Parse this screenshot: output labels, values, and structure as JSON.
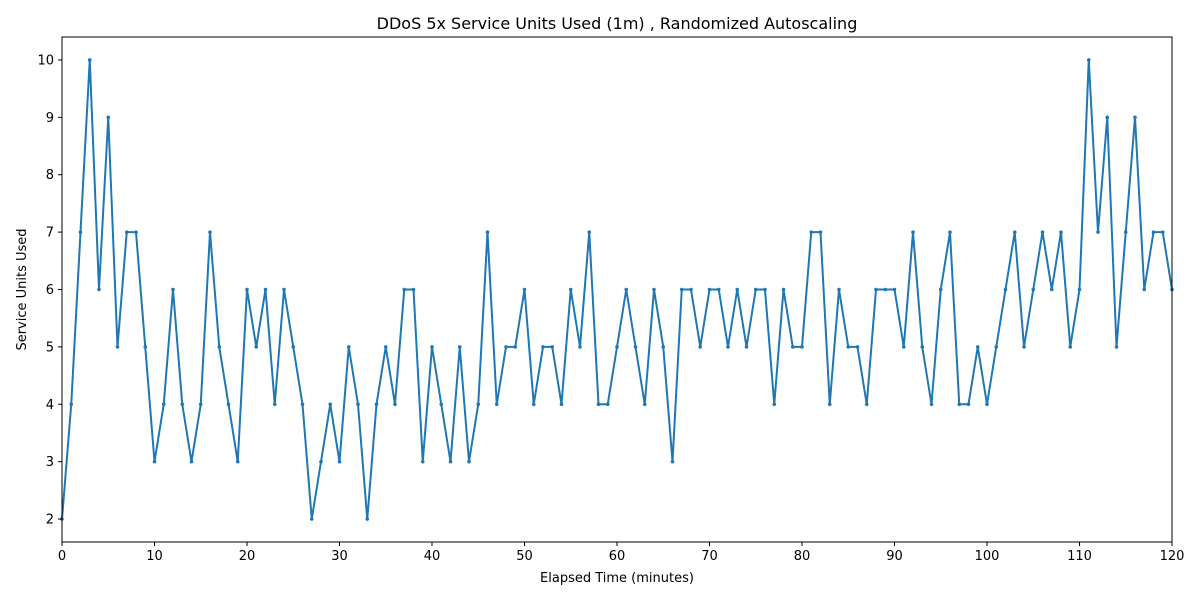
{
  "chart_data": {
    "type": "line",
    "title": "DDoS 5x Service Units Used (1m) , Randomized Autoscaling",
    "xlabel": "Elapsed Time (minutes)",
    "ylabel": "Service Units Used",
    "xlim": [
      0,
      120
    ],
    "ylim": [
      1.6,
      10.4
    ],
    "x_ticks": [
      0,
      10,
      20,
      30,
      40,
      50,
      60,
      70,
      80,
      90,
      100,
      110,
      120
    ],
    "y_ticks": [
      2,
      3,
      4,
      5,
      6,
      7,
      8,
      9,
      10
    ],
    "grid": false,
    "legend": "none",
    "series": [
      {
        "color": "#1f77b4",
        "x": [
          0,
          1,
          2,
          3,
          4,
          5,
          6,
          7,
          8,
          9,
          10,
          11,
          12,
          13,
          14,
          15,
          16,
          17,
          18,
          19,
          20,
          21,
          22,
          23,
          24,
          25,
          26,
          27,
          28,
          29,
          30,
          31,
          32,
          33,
          34,
          35,
          36,
          37,
          38,
          39,
          40,
          41,
          42,
          43,
          44,
          45,
          46,
          47,
          48,
          49,
          50,
          51,
          52,
          53,
          54,
          55,
          56,
          57,
          58,
          59,
          60,
          61,
          62,
          63,
          64,
          65,
          66,
          67,
          68,
          69,
          70,
          71,
          72,
          73,
          74,
          75,
          76,
          77,
          78,
          79,
          80,
          81,
          82,
          83,
          84,
          85,
          86,
          87,
          88,
          89,
          90,
          91,
          92,
          93,
          94,
          95,
          96,
          97,
          98,
          99,
          100,
          101,
          102,
          103,
          104,
          105,
          106,
          107,
          108,
          109,
          110,
          111,
          112,
          113,
          114,
          115,
          116,
          117,
          118,
          119,
          120
        ],
        "values": [
          2,
          4,
          7,
          10,
          6,
          9,
          5,
          7,
          7,
          5,
          3,
          4,
          6,
          4,
          3,
          4,
          7,
          5,
          4,
          3,
          6,
          5,
          6,
          4,
          6,
          5,
          4,
          2,
          3,
          4,
          3,
          5,
          4,
          2,
          4,
          5,
          4,
          6,
          6,
          3,
          5,
          4,
          3,
          5,
          3,
          4,
          7,
          4,
          5,
          5,
          6,
          4,
          5,
          5,
          4,
          6,
          5,
          7,
          4,
          4,
          5,
          6,
          5,
          4,
          6,
          5,
          3,
          6,
          6,
          5,
          6,
          6,
          5,
          6,
          5,
          6,
          6,
          4,
          6,
          5,
          5,
          7,
          7,
          4,
          6,
          5,
          5,
          4,
          6,
          6,
          6,
          5,
          7,
          5,
          4,
          6,
          7,
          4,
          4,
          5,
          4,
          5,
          6,
          7,
          5,
          6,
          7,
          6,
          7,
          5,
          6,
          10,
          7,
          9,
          5,
          7,
          9,
          6,
          7,
          7,
          6
        ]
      }
    ]
  }
}
